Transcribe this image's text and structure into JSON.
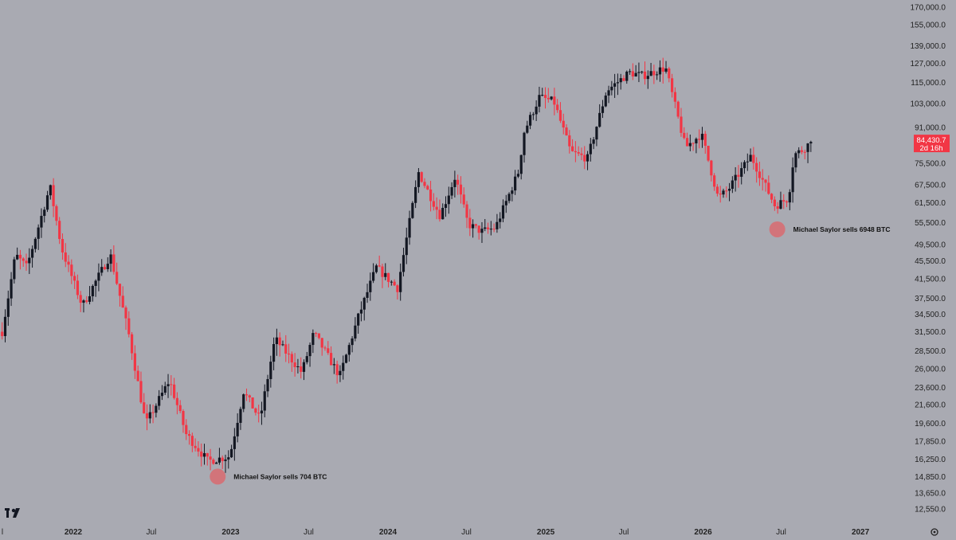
{
  "chart_data": {
    "type": "candlestick",
    "title": "",
    "xlabel": "",
    "ylabel": "",
    "y_scale": "log",
    "ylim": [
      11800,
      172000
    ],
    "xlim": [
      "2021-07-15",
      "2027-05-01"
    ],
    "grid": false,
    "y_ticks": [
      "170,000.0",
      "155,000.0",
      "139,000.0",
      "127,000.0",
      "115,000.0",
      "103,000.0",
      "91,000.0",
      "75,500.0",
      "67,500.0",
      "61,500.0",
      "55,500.0",
      "49,500.0",
      "45,500.0",
      "41,500.0",
      "37,500.0",
      "34,500.0",
      "31,500.0",
      "28,500.0",
      "26,000.0",
      "23,600.0",
      "21,600.0",
      "19,600.0",
      "17,850.0",
      "16,250.0",
      "14,850.0",
      "13,650.0",
      "12,550.0"
    ],
    "x_ticks": [
      {
        "label": "l",
        "date": "2021-07-15",
        "bold": false
      },
      {
        "label": "2022",
        "date": "2022-01-01",
        "bold": true
      },
      {
        "label": "Jul",
        "date": "2022-07-01",
        "bold": false
      },
      {
        "label": "2023",
        "date": "2023-01-01",
        "bold": true
      },
      {
        "label": "Jul",
        "date": "2023-07-01",
        "bold": false
      },
      {
        "label": "2024",
        "date": "2024-01-01",
        "bold": true
      },
      {
        "label": "Jul",
        "date": "2024-07-01",
        "bold": false
      },
      {
        "label": "2025",
        "date": "2025-01-01",
        "bold": true
      },
      {
        "label": "Jul",
        "date": "2025-07-01",
        "bold": false
      },
      {
        "label": "2026",
        "date": "2026-01-01",
        "bold": true
      },
      {
        "label": "Jul",
        "date": "2026-07-01",
        "bold": false
      },
      {
        "label": "2027",
        "date": "2027-01-01",
        "bold": true
      }
    ],
    "anchors": [
      [
        "2021-07-20",
        31500
      ],
      [
        "2021-08-20",
        47000
      ],
      [
        "2021-09-15",
        44000
      ],
      [
        "2021-11-08",
        67000
      ],
      [
        "2021-12-05",
        48500
      ],
      [
        "2022-01-22",
        36000
      ],
      [
        "2022-03-28",
        47000
      ],
      [
        "2022-05-10",
        31000
      ],
      [
        "2022-06-18",
        19500
      ],
      [
        "2022-08-12",
        24500
      ],
      [
        "2022-09-20",
        18500
      ],
      [
        "2022-11-09",
        16100
      ],
      [
        "2022-12-30",
        16500
      ],
      [
        "2023-01-31",
        23100
      ],
      [
        "2023-03-10",
        20000
      ],
      [
        "2023-04-14",
        30400
      ],
      [
        "2023-06-15",
        25500
      ],
      [
        "2023-07-13",
        31300
      ],
      [
        "2023-09-11",
        25000
      ],
      [
        "2023-10-24",
        34000
      ],
      [
        "2023-12-05",
        44000
      ],
      [
        "2024-01-23",
        39500
      ],
      [
        "2024-03-12",
        72000
      ],
      [
        "2024-05-01",
        57500
      ],
      [
        "2024-06-05",
        70500
      ],
      [
        "2024-07-05",
        55000
      ],
      [
        "2024-08-05",
        53000
      ],
      [
        "2024-09-06",
        54000
      ],
      [
        "2024-10-29",
        72000
      ],
      [
        "2024-11-12",
        89000
      ],
      [
        "2024-12-17",
        106500
      ],
      [
        "2025-01-20",
        104000
      ],
      [
        "2025-02-28",
        80000
      ],
      [
        "2025-04-08",
        77500
      ],
      [
        "2025-05-22",
        110000
      ],
      [
        "2025-07-14",
        121000
      ],
      [
        "2025-08-14",
        119000
      ],
      [
        "2025-10-06",
        124000
      ],
      [
        "2025-11-21",
        82000
      ],
      [
        "2025-12-28",
        88000
      ],
      [
        "2026-02-05",
        63000
      ],
      [
        "2026-03-01",
        66000
      ],
      [
        "2026-04-22",
        78500
      ],
      [
        "2026-06-17",
        60500
      ],
      [
        "2026-07-18",
        63000
      ],
      [
        "2026-07-31",
        79000
      ],
      [
        "2026-08-20",
        81000
      ],
      [
        "2026-09-08",
        84430.7
      ]
    ],
    "current_price": {
      "value": 84430.7,
      "label": "84,430.7",
      "sublabel": "2d 16h",
      "color": "#f23645"
    },
    "colors": {
      "up": "#131722",
      "down": "#f23645",
      "background": "#a9aab2"
    },
    "annotations": [
      {
        "text": "Michael Saylor sells 704 BTC",
        "date": "2022-12-02",
        "price": 14850
      },
      {
        "text": "Michael Saylor sells 6948 BTC",
        "date": "2026-06-22",
        "price": 53600
      }
    ]
  },
  "watermark": {
    "icon": "tradingview-logo-icon"
  },
  "settings": {
    "icon": "gear-icon"
  }
}
